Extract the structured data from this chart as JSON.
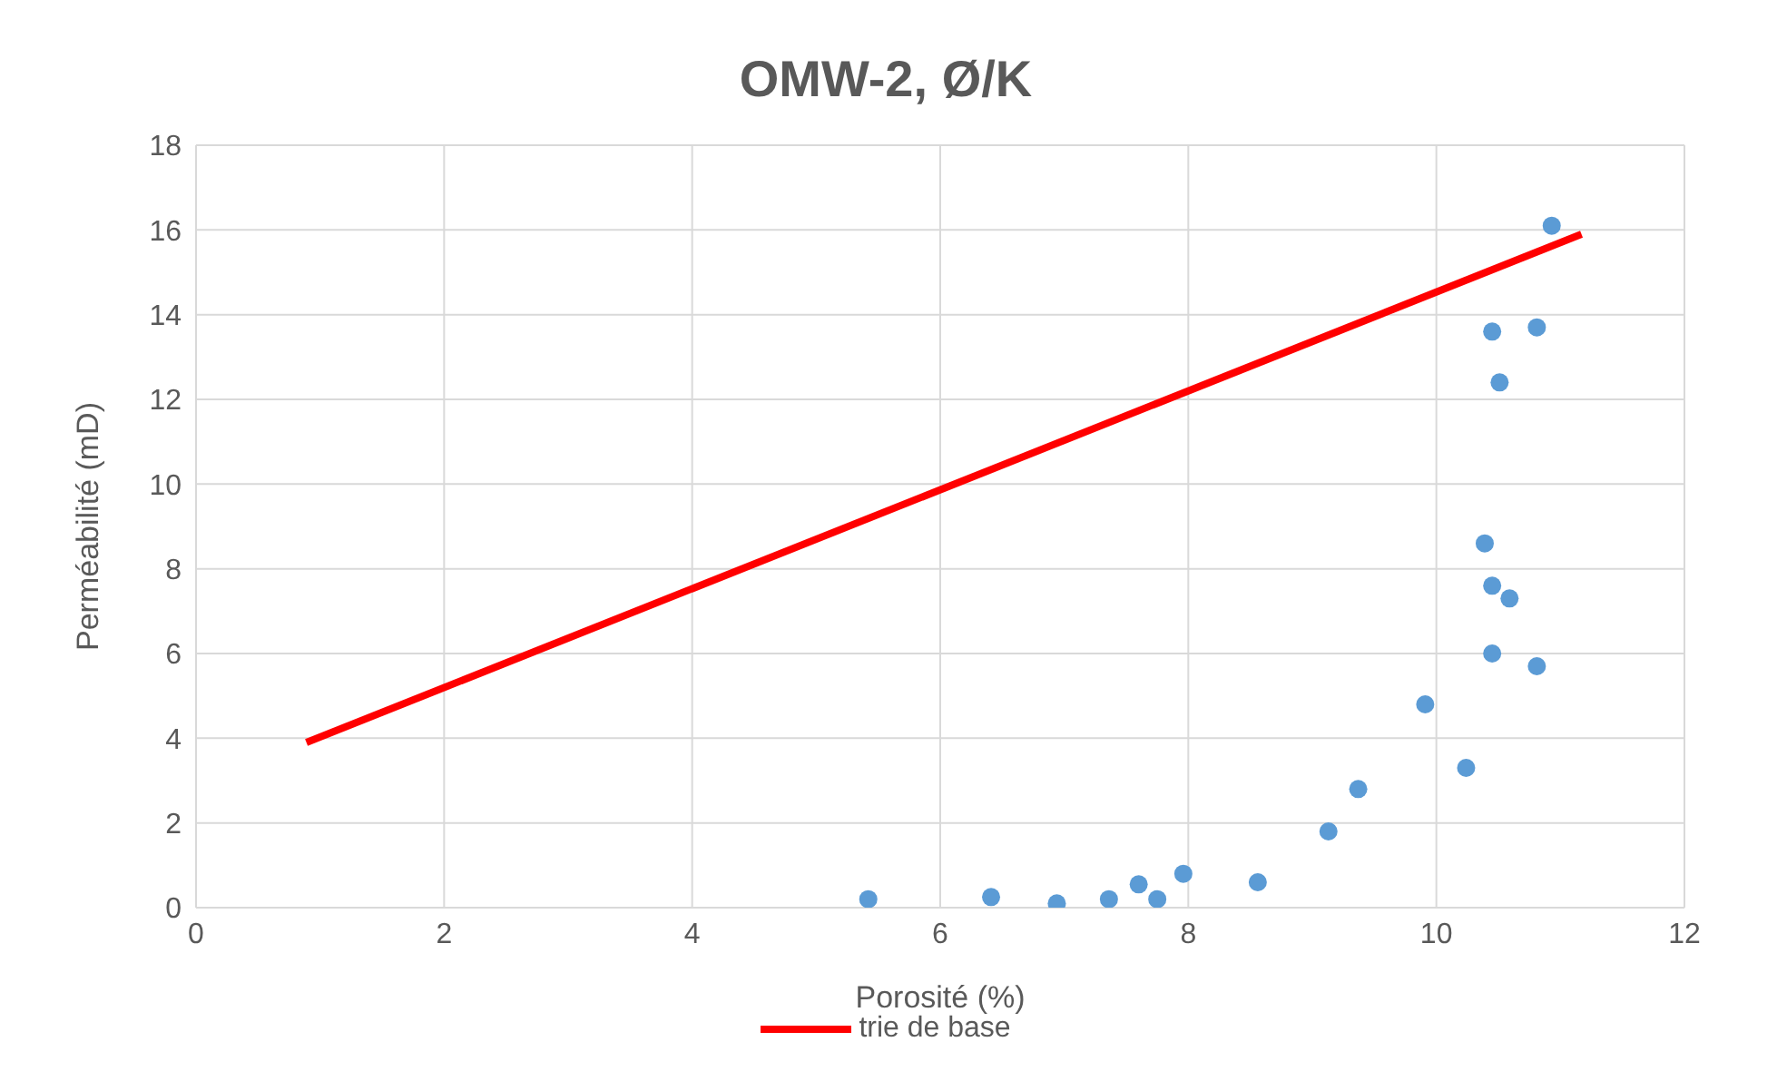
{
  "chart_data": {
    "type": "scatter",
    "title": "OMW-2,  Ø/K",
    "xlabel": "Porosité (%)",
    "ylabel": "Perméabilité (mD)",
    "xlim": [
      0,
      12
    ],
    "xticks": [
      0,
      2,
      4,
      6,
      8,
      10,
      12
    ],
    "ylim": [
      0,
      18
    ],
    "yticks": [
      0,
      2,
      4,
      6,
      8,
      10,
      12,
      14,
      16,
      18
    ],
    "grid": true,
    "legend": "bottom",
    "marker": "circle",
    "series": [
      {
        "color": "#5b9bd5",
        "x": [
          5.42,
          6.41,
          6.94,
          7.36,
          7.6,
          7.75,
          7.96,
          8.56,
          9.13,
          9.37,
          9.91,
          10.24,
          10.39,
          10.45,
          10.45,
          10.45,
          10.51,
          10.59,
          10.81,
          10.81,
          10.93
        ],
        "values": [
          0.2,
          0.25,
          0.1,
          0.2,
          0.55,
          0.2,
          0.8,
          0.6,
          1.8,
          2.8,
          4.8,
          3.3,
          8.6,
          7.6,
          6.0,
          13.6,
          12.4,
          7.3,
          5.7,
          13.7,
          16.1
        ]
      },
      {
        "type": "line",
        "name": "trie de base",
        "color": "#ff0000",
        "marker": "none",
        "x": [
          0.89,
          11.17
        ],
        "values": [
          3.9,
          15.9
        ]
      }
    ]
  }
}
